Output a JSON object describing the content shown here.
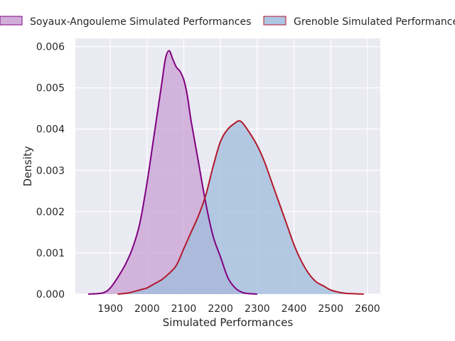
{
  "chart_data": {
    "type": "area",
    "xlabel": "Simulated Performances",
    "ylabel": "Density",
    "xlim": [
      1805,
      2635
    ],
    "ylim": [
      0,
      0.0062
    ],
    "xticks": [
      1900,
      2000,
      2100,
      2200,
      2300,
      2400,
      2500,
      2600
    ],
    "xtick_labels": [
      "1900",
      "2000",
      "2100",
      "2200",
      "2300",
      "2400",
      "2500",
      "2600"
    ],
    "yticks": [
      0,
      0.001,
      0.002,
      0.003,
      0.004,
      0.005,
      0.006
    ],
    "ytick_labels": [
      "0.000",
      "0.001",
      "0.002",
      "0.003",
      "0.004",
      "0.005",
      "0.006"
    ],
    "grid": true,
    "legend_placement": "top, outside plot",
    "series": [
      {
        "name": "Soyaux-Angouleme Simulated Performances",
        "fill_color": "#c9a0d4",
        "line_color": "#800080",
        "x": [
          1840,
          1880,
          1900,
          1920,
          1940,
          1960,
          1980,
          2000,
          2020,
          2040,
          2050,
          2060,
          2070,
          2080,
          2090,
          2100,
          2110,
          2120,
          2140,
          2160,
          2180,
          2200,
          2220,
          2240,
          2260,
          2280,
          2300
        ],
        "y": [
          0.0,
          3e-05,
          0.00015,
          0.0004,
          0.0007,
          0.0011,
          0.0017,
          0.0027,
          0.0039,
          0.0051,
          0.0057,
          0.0059,
          0.0057,
          0.0055,
          0.0054,
          0.0052,
          0.0048,
          0.0042,
          0.0032,
          0.0022,
          0.0014,
          0.0009,
          0.0004,
          0.00015,
          4e-05,
          1e-05,
          0.0
        ]
      },
      {
        "name": "Grenoble Simulated Performances",
        "fill_color": "#9fbcdc",
        "line_color": "#b2182b",
        "x": [
          1920,
          1950,
          1980,
          2000,
          2020,
          2040,
          2060,
          2080,
          2100,
          2120,
          2140,
          2160,
          2180,
          2200,
          2220,
          2240,
          2250,
          2260,
          2280,
          2300,
          2320,
          2340,
          2360,
          2380,
          2400,
          2420,
          2440,
          2460,
          2480,
          2500,
          2520,
          2540,
          2560,
          2590
        ],
        "y": [
          0.0,
          3e-05,
          0.0001,
          0.00015,
          0.00025,
          0.00035,
          0.0005,
          0.0007,
          0.0011,
          0.0015,
          0.0019,
          0.0024,
          0.0031,
          0.0037,
          0.004,
          0.00415,
          0.0042,
          0.00415,
          0.0039,
          0.0036,
          0.0032,
          0.0027,
          0.0022,
          0.0017,
          0.0012,
          0.0008,
          0.0005,
          0.0003,
          0.0002,
          0.0001,
          5e-05,
          2e-05,
          1e-05,
          0.0
        ]
      }
    ]
  }
}
